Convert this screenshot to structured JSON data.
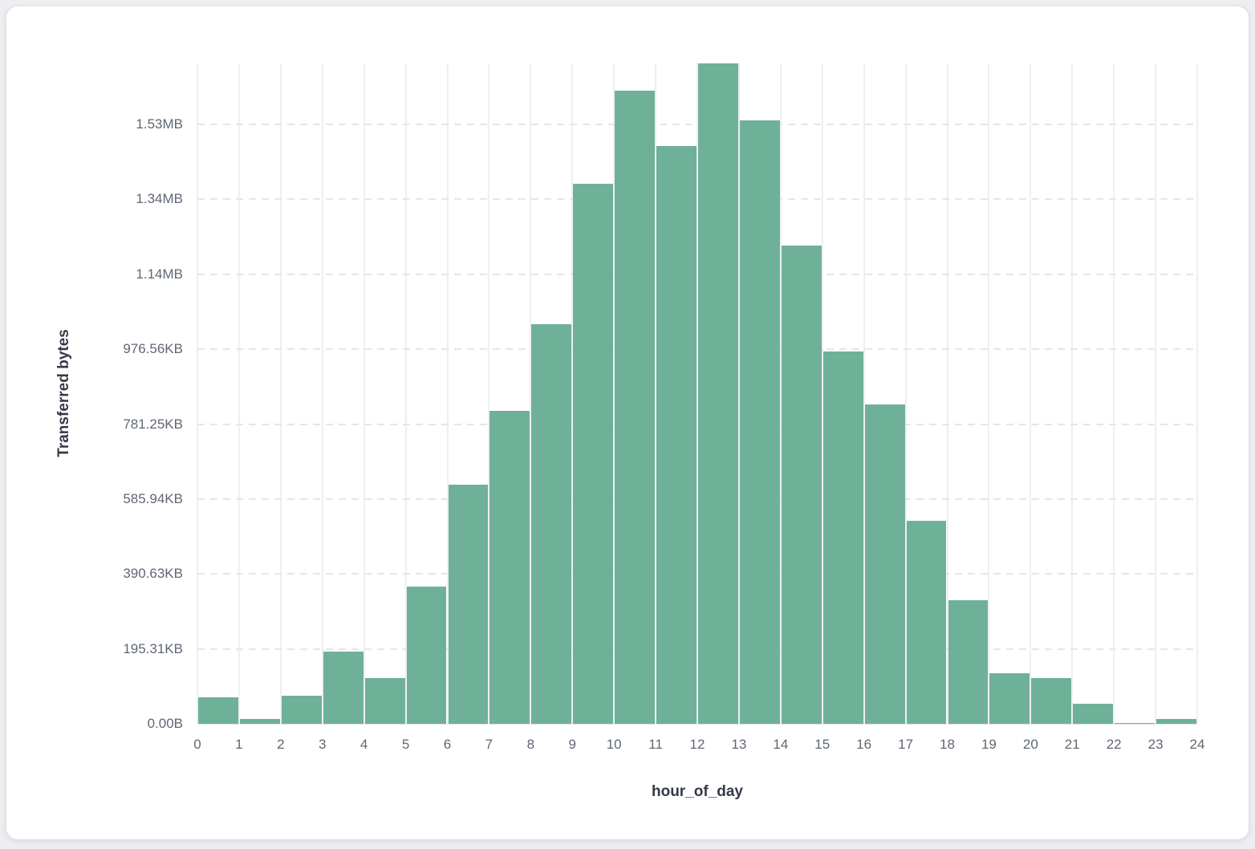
{
  "colors": {
    "page_bg": "#ECEEF1",
    "card_bg": "#FFFFFF",
    "bar": "#6FB198",
    "bar_gap": "#FFFFFF",
    "v_grid": "#EDEFF3",
    "h_grid": "#E3E6EB",
    "baseline": "#E2E5EA",
    "tick_text": "#5F6774",
    "axis_title": "#333A46"
  },
  "chart_data": {
    "type": "bar",
    "title": "",
    "xlabel": "hour_of_day",
    "ylabel": "Transferred bytes",
    "bin_start_hours": [
      0,
      1,
      2,
      3,
      4,
      5,
      6,
      7,
      8,
      9,
      10,
      11,
      12,
      13,
      14,
      15,
      16,
      17,
      18,
      19,
      20,
      21,
      22,
      23
    ],
    "bin_width_hours": 1,
    "values_bytes": [
      71000,
      12000,
      75000,
      193000,
      122000,
      366000,
      639000,
      835000,
      1066000,
      1441000,
      1690000,
      1543000,
      1763000,
      1612000,
      1277000,
      995000,
      853000,
      543000,
      330000,
      136000,
      122000,
      54000,
      3000,
      12000
    ],
    "x_tick_labels": [
      "0",
      "1",
      "2",
      "3",
      "4",
      "5",
      "6",
      "7",
      "8",
      "9",
      "10",
      "11",
      "12",
      "13",
      "14",
      "15",
      "16",
      "17",
      "18",
      "19",
      "20",
      "21",
      "22",
      "23",
      "24"
    ],
    "y_tick_labels": [
      "0.00B",
      "195.31KB",
      "390.63KB",
      "585.94KB",
      "781.25KB",
      "976.56KB",
      "1.14MB",
      "1.34MB",
      "1.53MB"
    ],
    "y_tick_bytes": [
      0,
      200000,
      400000,
      600000,
      800000,
      1000000,
      1200000,
      1400000,
      1600000
    ],
    "ylim_bytes": [
      0,
      1763000
    ],
    "grid": true,
    "grid_style": {
      "horizontal": "dashed",
      "vertical": "solid"
    },
    "legend": false
  }
}
